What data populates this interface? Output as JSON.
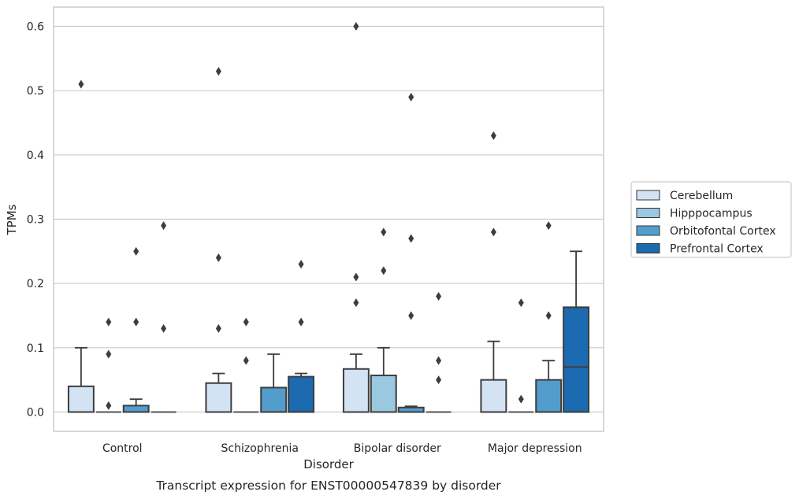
{
  "chart_data": {
    "type": "box",
    "title": "",
    "caption": "Transcript expression for ENST00000547839 by disorder",
    "xlabel": "Disorder",
    "ylabel": "TPMs",
    "ylim": [
      -0.03,
      0.63
    ],
    "yticks": [
      0.0,
      0.1,
      0.2,
      0.3,
      0.4,
      0.5,
      0.6
    ],
    "ytick_labels": [
      "0.0",
      "0.1",
      "0.2",
      "0.3",
      "0.4",
      "0.5",
      "0.6"
    ],
    "grid": "horizontal",
    "legend_position": "right",
    "categories": [
      "Control",
      "Schizophrenia",
      "Bipolar disorder",
      "Major depression"
    ],
    "series": [
      {
        "name": "Cerebellum",
        "color": "#d3e3f3",
        "boxes": [
          {
            "q1": 0.0,
            "median": 0.0,
            "q3": 0.04,
            "whisker_low": 0.0,
            "whisker_high": 0.1,
            "outliers": [
              0.51
            ]
          },
          {
            "q1": 0.0,
            "median": 0.0,
            "q3": 0.045,
            "whisker_low": 0.0,
            "whisker_high": 0.06,
            "outliers": [
              0.53,
              0.24,
              0.13
            ]
          },
          {
            "q1": 0.0,
            "median": 0.0,
            "q3": 0.067,
            "whisker_low": 0.0,
            "whisker_high": 0.09,
            "outliers": [
              0.6,
              0.21,
              0.17
            ]
          },
          {
            "q1": 0.0,
            "median": 0.0,
            "q3": 0.05,
            "whisker_low": 0.0,
            "whisker_high": 0.11,
            "outliers": [
              0.43,
              0.28
            ]
          }
        ]
      },
      {
        "name": "Hipppocampus",
        "color": "#9ac8e0",
        "boxes": [
          {
            "q1": 0.0,
            "median": 0.0,
            "q3": 0.0,
            "whisker_low": 0.0,
            "whisker_high": 0.0,
            "outliers": [
              0.14,
              0.09,
              0.01
            ]
          },
          {
            "q1": 0.0,
            "median": 0.0,
            "q3": 0.0,
            "whisker_low": 0.0,
            "whisker_high": 0.0,
            "outliers": [
              0.14,
              0.08
            ]
          },
          {
            "q1": 0.0,
            "median": 0.0,
            "q3": 0.057,
            "whisker_low": 0.0,
            "whisker_high": 0.1,
            "outliers": [
              0.28,
              0.22
            ]
          },
          {
            "q1": 0.0,
            "median": 0.0,
            "q3": 0.0,
            "whisker_low": 0.0,
            "whisker_high": 0.0,
            "outliers": [
              0.17,
              0.02
            ]
          }
        ]
      },
      {
        "name": "Orbitofontal Cortex",
        "color": "#529dcc",
        "boxes": [
          {
            "q1": 0.0,
            "median": 0.0,
            "q3": 0.01,
            "whisker_low": 0.0,
            "whisker_high": 0.02,
            "outliers": [
              0.25,
              0.14
            ]
          },
          {
            "q1": 0.0,
            "median": 0.0,
            "q3": 0.038,
            "whisker_low": 0.0,
            "whisker_high": 0.09,
            "outliers": []
          },
          {
            "q1": 0.0,
            "median": 0.0,
            "q3": 0.007,
            "whisker_low": 0.0,
            "whisker_high": 0.009,
            "outliers": [
              0.49,
              0.27,
              0.15
            ]
          },
          {
            "q1": 0.0,
            "median": 0.0,
            "q3": 0.05,
            "whisker_low": 0.0,
            "whisker_high": 0.08,
            "outliers": [
              0.29,
              0.15
            ]
          }
        ]
      },
      {
        "name": "Prefrontal Cortex",
        "color": "#1c6aaf",
        "boxes": [
          {
            "q1": 0.0,
            "median": 0.0,
            "q3": 0.0,
            "whisker_low": 0.0,
            "whisker_high": 0.0,
            "outliers": [
              0.29,
              0.13
            ]
          },
          {
            "q1": 0.0,
            "median": 0.0,
            "q3": 0.055,
            "whisker_low": 0.0,
            "whisker_high": 0.06,
            "outliers": [
              0.23,
              0.14
            ]
          },
          {
            "q1": 0.0,
            "median": 0.0,
            "q3": 0.0,
            "whisker_low": 0.0,
            "whisker_high": 0.0,
            "outliers": [
              0.18,
              0.08,
              0.05
            ]
          },
          {
            "q1": 0.0,
            "median": 0.07,
            "q3": 0.163,
            "whisker_low": 0.0,
            "whisker_high": 0.25,
            "outliers": []
          }
        ]
      }
    ]
  }
}
